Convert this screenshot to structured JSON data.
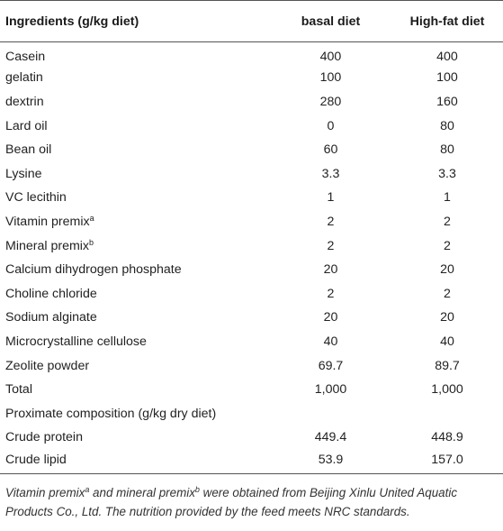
{
  "table": {
    "headers": [
      "Ingredients (g/kg diet)",
      "basal diet",
      "High-fat diet"
    ],
    "rows": [
      {
        "label": "Casein",
        "sup": "",
        "basal": "400",
        "high_fat": "400"
      },
      {
        "label": "gelatin",
        "sup": "",
        "basal": "100",
        "high_fat": "100"
      },
      {
        "label": "dextrin",
        "sup": "",
        "basal": "280",
        "high_fat": "160"
      },
      {
        "label": "Lard oil",
        "sup": "",
        "basal": "0",
        "high_fat": "80"
      },
      {
        "label": "Bean oil",
        "sup": "",
        "basal": "60",
        "high_fat": "80"
      },
      {
        "label": "Lysine",
        "sup": "",
        "basal": "3.3",
        "high_fat": "3.3"
      },
      {
        "label": "VC lecithin",
        "sup": "",
        "basal": "1",
        "high_fat": "1"
      },
      {
        "label": "Vitamin premix",
        "sup": "a",
        "basal": "2",
        "high_fat": "2"
      },
      {
        "label": "Mineral premix",
        "sup": "b",
        "basal": "2",
        "high_fat": "2"
      },
      {
        "label": "Calcium dihydrogen phosphate",
        "sup": "",
        "basal": "20",
        "high_fat": "20"
      },
      {
        "label": "Choline chloride",
        "sup": "",
        "basal": "2",
        "high_fat": "2"
      },
      {
        "label": "Sodium alginate",
        "sup": "",
        "basal": "20",
        "high_fat": "20"
      },
      {
        "label": "Microcrystalline cellulose",
        "sup": "",
        "basal": "40",
        "high_fat": "40"
      },
      {
        "label": "Zeolite powder",
        "sup": "",
        "basal": "69.7",
        "high_fat": "89.7"
      },
      {
        "label": "Total",
        "sup": "",
        "basal": "1,000",
        "high_fat": "1,000"
      },
      {
        "label": "Proximate composition (g/kg dry diet)",
        "sup": "",
        "basal": "",
        "high_fat": ""
      },
      {
        "label": "Crude protein",
        "sup": "",
        "basal": "449.4",
        "high_fat": "448.9"
      },
      {
        "label": "Crude lipid",
        "sup": "",
        "basal": "53.9",
        "high_fat": "157.0"
      }
    ]
  },
  "footnote": {
    "part1": "Vitamin premix",
    "sup1": "a",
    "part2": " and mineral premix",
    "sup2": "b",
    "part3": " were obtained from Beijing Xinlu United Aquatic Products Co., Ltd. The nutrition provided by the feed meets NRC standards."
  }
}
